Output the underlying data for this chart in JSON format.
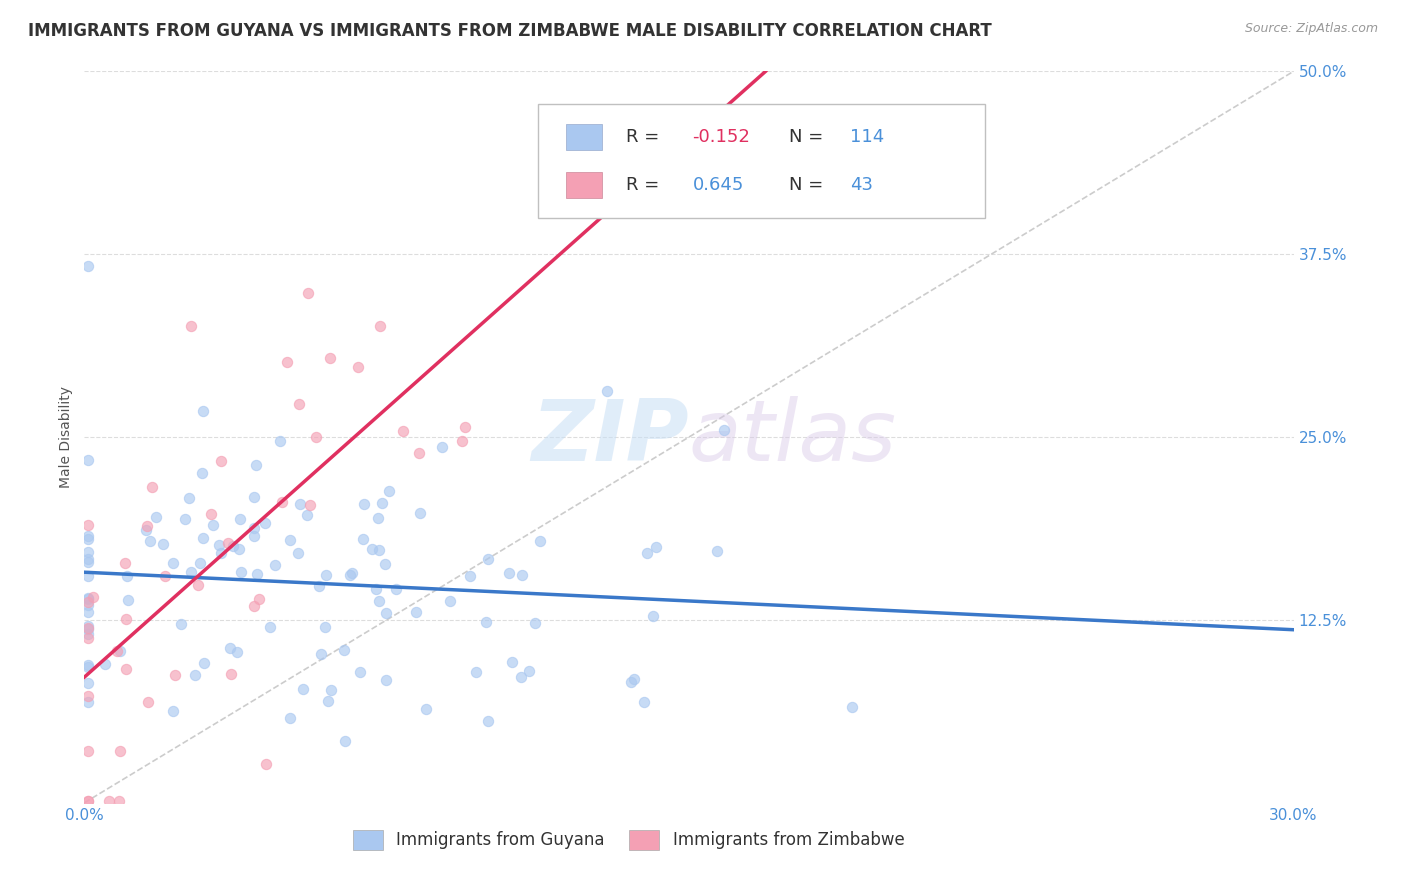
{
  "title": "IMMIGRANTS FROM GUYANA VS IMMIGRANTS FROM ZIMBABWE MALE DISABILITY CORRELATION CHART",
  "source": "Source: ZipAtlas.com",
  "ylabel": "Male Disability",
  "xlim": [
    0.0,
    0.3
  ],
  "ylim": [
    0.0,
    0.5
  ],
  "xticks": [
    0.0,
    0.05,
    0.1,
    0.15,
    0.2,
    0.25,
    0.3
  ],
  "xticklabels": [
    "0.0%",
    "",
    "",
    "",
    "",
    "",
    "30.0%"
  ],
  "yticks": [
    0.0,
    0.125,
    0.25,
    0.375,
    0.5
  ],
  "yticklabels": [
    "",
    "12.5%",
    "25.0%",
    "37.5%",
    "50.0%"
  ],
  "guyana_color": "#aac8f0",
  "zimbabwe_color": "#f4a0b4",
  "guyana_edge_color": "#6699cc",
  "zimbabwe_edge_color": "#dd6688",
  "guyana_line_color": "#3a78c9",
  "zimbabwe_line_color": "#e03060",
  "ref_line_color": "#cccccc",
  "grid_color": "#dddddd",
  "background_color": "#ffffff",
  "legend_R_guyana": "-0.152",
  "legend_N_guyana": "114",
  "legend_R_zimbabwe": "0.645",
  "legend_N_zimbabwe": "43",
  "guyana_R": -0.152,
  "guyana_N": 114,
  "zimbabwe_R": 0.645,
  "zimbabwe_N": 43,
  "seed": 42,
  "title_fontsize": 12,
  "axis_label_fontsize": 10,
  "tick_fontsize": 11,
  "legend_fontsize": 13,
  "dot_size": 55,
  "dot_alpha": 0.65,
  "dot_linewidth": 0.8
}
